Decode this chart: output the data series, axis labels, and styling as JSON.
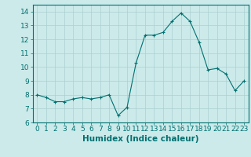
{
  "x": [
    0,
    1,
    2,
    3,
    4,
    5,
    6,
    7,
    8,
    9,
    10,
    11,
    12,
    13,
    14,
    15,
    16,
    17,
    18,
    19,
    20,
    21,
    22,
    23
  ],
  "y": [
    8.0,
    7.8,
    7.5,
    7.5,
    7.7,
    7.8,
    7.7,
    7.8,
    8.0,
    6.5,
    7.1,
    10.3,
    12.3,
    12.3,
    12.5,
    13.3,
    13.9,
    13.3,
    11.8,
    9.8,
    9.9,
    9.5,
    8.3,
    9.0
  ],
  "line_color": "#007070",
  "marker": "+",
  "marker_size": 3,
  "background_color": "#cceaea",
  "grid_color": "#aacfcf",
  "xlabel": "Humidex (Indice chaleur)",
  "xlim": [
    -0.5,
    23.5
  ],
  "ylim": [
    6,
    14.5
  ],
  "yticks": [
    6,
    7,
    8,
    9,
    10,
    11,
    12,
    13,
    14
  ],
  "xticks": [
    0,
    1,
    2,
    3,
    4,
    5,
    6,
    7,
    8,
    9,
    10,
    11,
    12,
    13,
    14,
    15,
    16,
    17,
    18,
    19,
    20,
    21,
    22,
    23
  ],
  "tick_color": "#007070",
  "label_color": "#007070",
  "spine_color": "#007070",
  "font_size": 6.5,
  "xlabel_fontsize": 7.5
}
